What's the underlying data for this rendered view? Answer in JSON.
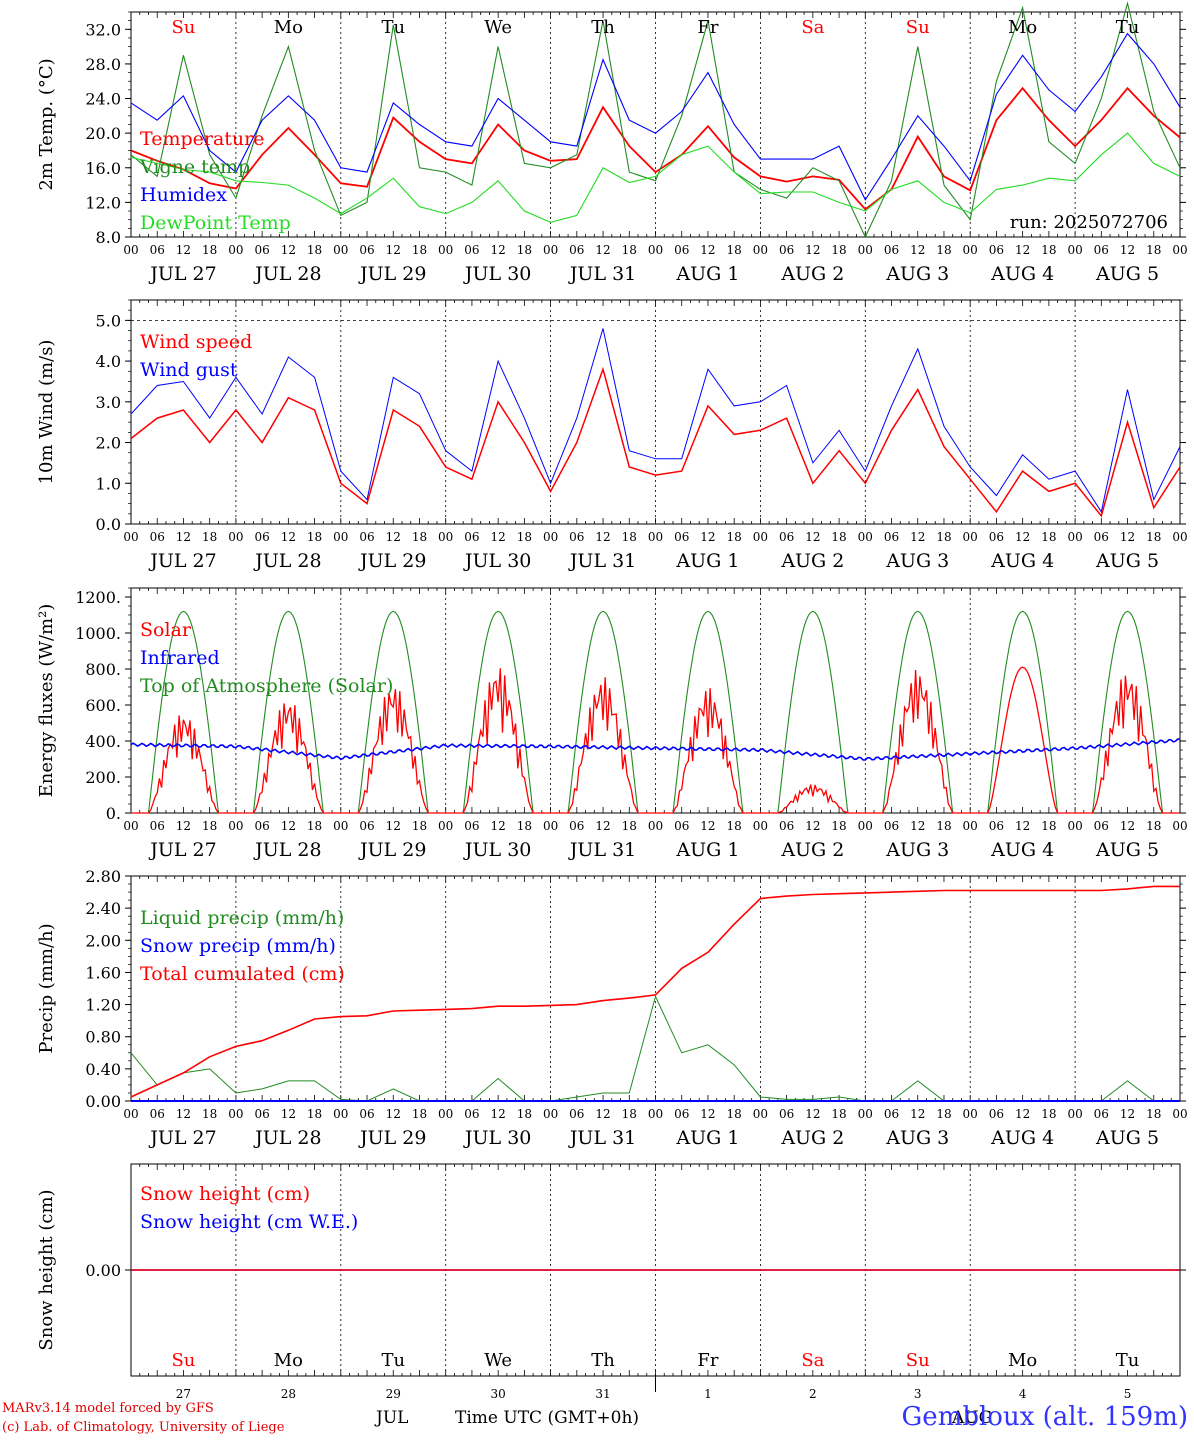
{
  "colors": {
    "red": "#ff0000",
    "green": "#228b22",
    "blue": "#0000ff",
    "lightgreen": "#22dd22",
    "axis": "#000000"
  },
  "day_axis": [
    "JUL 27",
    "JUL 28",
    "JUL 29",
    "JUL 30",
    "JUL 31",
    "AUG  1",
    "AUG  2",
    "AUG  3",
    "AUG  4",
    "AUG  5"
  ],
  "hour_ticks": [
    "00",
    "06",
    "12",
    "18"
  ],
  "weekdays": [
    {
      "label": "Su",
      "color": "#ff0000"
    },
    {
      "label": "Mo",
      "color": "#000000"
    },
    {
      "label": "Tu",
      "color": "#000000"
    },
    {
      "label": "We",
      "color": "#000000"
    },
    {
      "label": "Th",
      "color": "#000000"
    },
    {
      "label": "Fr",
      "color": "#000000"
    },
    {
      "label": "Sa",
      "color": "#ff0000"
    },
    {
      "label": "Su",
      "color": "#ff0000"
    },
    {
      "label": "Mo",
      "color": "#000000"
    },
    {
      "label": "Tu",
      "color": "#000000"
    }
  ],
  "bottom_axis": {
    "day_numbers": [
      "27",
      "28",
      "29",
      "30",
      "31",
      "1",
      "2",
      "3",
      "4",
      "5"
    ],
    "month_labels": [
      "JUL",
      "AUG"
    ],
    "xlabel": "Time UTC (GMT+0h)"
  },
  "footer": {
    "model": "MARv3.14 model forced by GFS",
    "credit": "(c) Lab. of Climatology, University of Liege",
    "station": "Gembloux (alt. 159m)"
  },
  "chart_data": [
    {
      "type": "line",
      "ylabel": "2m Temp. (°C)",
      "ylim": [
        8,
        34
      ],
      "yticks": [
        "8.0",
        "12.0",
        "16.0",
        "20.0",
        "24.0",
        "28.0",
        "32.0"
      ],
      "annotation": "run: 2025072706",
      "x_hours": [
        0,
        6,
        12,
        18,
        24,
        30,
        36,
        42,
        48,
        54,
        60,
        66,
        72,
        78,
        84,
        90,
        96,
        102,
        108,
        114,
        120,
        126,
        132,
        138,
        144,
        150,
        156,
        162,
        168,
        174,
        180,
        186,
        192,
        198,
        204,
        210,
        216,
        222,
        228,
        234,
        240
      ],
      "series": [
        {
          "name": "Temperature",
          "color": "red",
          "values": [
            18.0,
            16.8,
            15.8,
            14.2,
            13.6,
            17.5,
            20.6,
            17.5,
            14.2,
            13.8,
            21.8,
            19.0,
            17.0,
            16.5,
            21.0,
            18.0,
            16.8,
            17.0,
            23.0,
            18.5,
            15.5,
            17.5,
            20.8,
            17.2,
            15.0,
            14.4,
            15.0,
            14.6,
            11.2,
            13.5,
            19.6,
            15.0,
            13.4,
            21.5,
            25.2,
            21.5,
            18.5,
            21.5,
            25.2,
            22.0,
            19.5
          ]
        },
        {
          "name": "Vigne temp",
          "color": "green",
          "values": [
            17.5,
            15.0,
            29.0,
            17.5,
            12.5,
            22.0,
            30.0,
            18.0,
            10.5,
            12.0,
            32.5,
            16.0,
            15.5,
            14.0,
            30.0,
            16.5,
            16.0,
            17.5,
            33.0,
            15.5,
            14.5,
            22.0,
            33.0,
            15.5,
            13.5,
            12.5,
            16.0,
            14.5,
            8.0,
            14.5,
            30.0,
            14.0,
            10.0,
            26.0,
            34.5,
            19.0,
            16.5,
            24.0,
            35.0,
            22.5,
            16.0
          ]
        },
        {
          "name": "Humidex",
          "color": "blue",
          "values": [
            23.5,
            21.5,
            24.3,
            18.0,
            15.5,
            21.5,
            24.3,
            21.5,
            16.0,
            15.5,
            23.5,
            21.0,
            19.0,
            18.5,
            24.0,
            21.5,
            19.0,
            18.5,
            28.5,
            21.5,
            20.0,
            22.5,
            27.0,
            21.0,
            17.0,
            17.0,
            17.0,
            18.5,
            12.3,
            17.0,
            22.0,
            18.5,
            14.5,
            24.5,
            29.0,
            25.0,
            22.5,
            26.5,
            31.5,
            28.0,
            23.0
          ]
        },
        {
          "name": "DewPoint Temp",
          "color": "lightgreen",
          "values": [
            17.2,
            16.5,
            15.8,
            15.5,
            14.5,
            14.3,
            14.0,
            12.5,
            10.7,
            12.5,
            14.8,
            11.5,
            10.7,
            12.0,
            14.5,
            11.0,
            9.7,
            10.5,
            16.0,
            14.3,
            15.0,
            17.5,
            18.5,
            15.5,
            13.0,
            13.2,
            13.2,
            12.0,
            11.0,
            13.5,
            14.5,
            12.0,
            10.8,
            13.5,
            14.0,
            14.8,
            14.5,
            17.5,
            20.0,
            16.5,
            15.0
          ]
        }
      ]
    },
    {
      "type": "line",
      "ylabel": "10m Wind (m/s)",
      "ylim": [
        0,
        5.5
      ],
      "yticks": [
        "0.0",
        "1.0",
        "2.0",
        "3.0",
        "4.0",
        "5.0"
      ],
      "x_hours": [
        0,
        6,
        12,
        18,
        24,
        30,
        36,
        42,
        48,
        54,
        60,
        66,
        72,
        78,
        84,
        90,
        96,
        102,
        108,
        114,
        120,
        126,
        132,
        138,
        144,
        150,
        156,
        162,
        168,
        174,
        180,
        186,
        192,
        198,
        204,
        210,
        216,
        222,
        228,
        234,
        240
      ],
      "series": [
        {
          "name": "Wind speed",
          "color": "red",
          "values": [
            2.1,
            2.6,
            2.8,
            2.0,
            2.8,
            2.0,
            3.1,
            2.8,
            1.0,
            0.5,
            2.8,
            2.4,
            1.4,
            1.1,
            3.0,
            2.0,
            0.8,
            2.0,
            3.8,
            1.4,
            1.2,
            1.3,
            2.9,
            2.2,
            2.3,
            2.6,
            1.0,
            1.8,
            1.0,
            2.3,
            3.3,
            1.9,
            1.1,
            0.3,
            1.3,
            0.8,
            1.0,
            0.2,
            2.5,
            0.4,
            1.4
          ]
        },
        {
          "name": "Wind gust",
          "color": "blue",
          "values": [
            2.7,
            3.4,
            3.5,
            2.6,
            3.6,
            2.7,
            4.1,
            3.6,
            1.3,
            0.6,
            3.6,
            3.2,
            1.8,
            1.3,
            4.0,
            2.6,
            1.0,
            2.6,
            4.8,
            1.8,
            1.6,
            1.6,
            3.8,
            2.9,
            3.0,
            3.4,
            1.5,
            2.3,
            1.3,
            2.9,
            4.3,
            2.4,
            1.4,
            0.7,
            1.7,
            1.1,
            1.3,
            0.3,
            3.3,
            0.6,
            1.9
          ]
        }
      ]
    },
    {
      "type": "line",
      "ylabel": "Energy fluxes (W/m²)",
      "ylim": [
        0,
        1250
      ],
      "yticks": [
        "0.",
        "200.",
        "400.",
        "600.",
        "800.",
        "1000.",
        "1200."
      ],
      "toa_peak": 1120,
      "sun_hours": [
        4,
        20
      ],
      "solar_peaks": [
        560,
        640,
        720,
        820,
        760,
        700,
        160,
        800,
        810,
        790
      ],
      "infrared": [
        380,
        370,
        305,
        375,
        370,
        360,
        350,
        300,
        330,
        360,
        405
      ],
      "series": [
        {
          "name": "Solar",
          "color": "red"
        },
        {
          "name": "Infrared",
          "color": "blue"
        },
        {
          "name": "Top of Atmosphere (Solar)",
          "color": "green"
        }
      ]
    },
    {
      "type": "line",
      "ylabel": "Precip (mm/h)",
      "ylim": [
        0,
        2.8
      ],
      "yticks": [
        "0.00",
        "0.40",
        "0.80",
        "1.20",
        "1.60",
        "2.00",
        "2.40",
        "2.80"
      ],
      "x_hours": [
        0,
        6,
        12,
        18,
        24,
        30,
        36,
        42,
        48,
        54,
        60,
        66,
        72,
        78,
        84,
        90,
        96,
        102,
        108,
        114,
        120,
        126,
        132,
        138,
        144,
        150,
        156,
        162,
        168,
        174,
        180,
        186,
        192,
        198,
        204,
        210,
        216,
        222,
        228,
        234,
        240
      ],
      "series": [
        {
          "name": "Liquid precip (mm/h)",
          "color": "green",
          "values": [
            0.6,
            0.2,
            0.35,
            0.4,
            0.1,
            0.15,
            0.25,
            0.25,
            0.02,
            0.0,
            0.15,
            0.0,
            0.0,
            0.0,
            0.28,
            0.0,
            0.0,
            0.05,
            0.1,
            0.1,
            1.3,
            0.6,
            0.7,
            0.45,
            0.05,
            0.02,
            0.02,
            0.05,
            0.0,
            0.0,
            0.25,
            0.0,
            0.0,
            0.0,
            0.0,
            0.0,
            0.0,
            0.0,
            0.25,
            0.0,
            0.0
          ]
        },
        {
          "name": "Snow precip (mm/h)",
          "color": "blue",
          "values": [
            0,
            0,
            0,
            0,
            0,
            0,
            0,
            0,
            0,
            0,
            0,
            0,
            0,
            0,
            0,
            0,
            0,
            0,
            0,
            0,
            0,
            0,
            0,
            0,
            0,
            0,
            0,
            0,
            0,
            0,
            0,
            0,
            0,
            0,
            0,
            0,
            0,
            0,
            0,
            0,
            0
          ]
        },
        {
          "name": "Total cumulated (cm)",
          "color": "red",
          "values": [
            0.05,
            0.2,
            0.35,
            0.55,
            0.68,
            0.75,
            0.88,
            1.02,
            1.05,
            1.06,
            1.12,
            1.13,
            1.14,
            1.15,
            1.18,
            1.18,
            1.19,
            1.2,
            1.25,
            1.28,
            1.32,
            1.65,
            1.85,
            2.2,
            2.52,
            2.55,
            2.57,
            2.58,
            2.59,
            2.6,
            2.61,
            2.62,
            2.62,
            2.62,
            2.62,
            2.62,
            2.62,
            2.62,
            2.64,
            2.67,
            2.67
          ]
        }
      ]
    },
    {
      "type": "line",
      "ylabel": "Snow height (cm)",
      "yticks": [
        "0.00"
      ],
      "series": [
        {
          "name": "Snow height (cm)",
          "color": "red",
          "values": [
            0.0,
            0.0
          ]
        },
        {
          "name": "Snow height (cm W.E.)",
          "color": "blue",
          "values": [
            0.0,
            0.0
          ]
        }
      ]
    }
  ]
}
